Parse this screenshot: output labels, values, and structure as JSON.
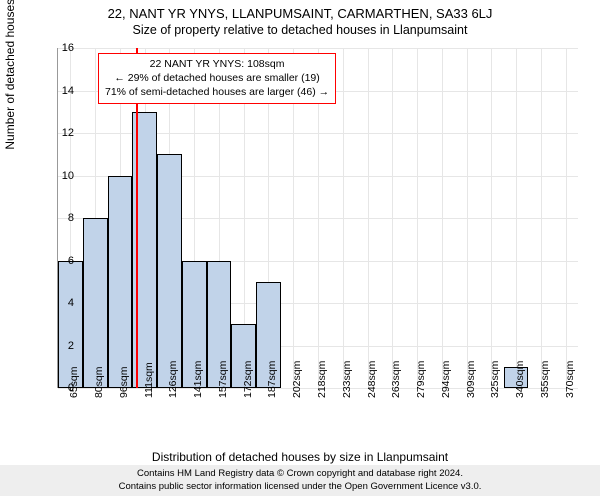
{
  "title_main": "22, NANT YR YNYS, LLANPUMSAINT, CARMARTHEN, SA33 6LJ",
  "title_sub": "Size of property relative to detached houses in Llanpumsaint",
  "y_axis_label": "Number of detached houses",
  "x_axis_label": "Distribution of detached houses by size in Llanpumsaint",
  "footer_line1": "Contains HM Land Registry data © Crown copyright and database right 2024.",
  "footer_line2": "Contains public sector information licensed under the Open Government Licence v3.0.",
  "chart": {
    "type": "histogram",
    "ylim": [
      0,
      16
    ],
    "ytick_step": 2,
    "bin_width": 15,
    "x_start": 60,
    "plot_bg": "#ffffff",
    "grid_color": "#e6e6e6",
    "bar_fill": "#c1d3e9",
    "bar_border": "#000000",
    "ref_line_color": "#ff0000",
    "ref_line_value": 108,
    "annotation_border": "#ff0000",
    "x_categories": [
      "65sqm",
      "80sqm",
      "96sqm",
      "111sqm",
      "126sqm",
      "141sqm",
      "157sqm",
      "172sqm",
      "187sqm",
      "202sqm",
      "218sqm",
      "233sqm",
      "248sqm",
      "263sqm",
      "279sqm",
      "294sqm",
      "309sqm",
      "325sqm",
      "340sqm",
      "355sqm",
      "370sqm"
    ],
    "values": [
      6,
      8,
      10,
      13,
      11,
      6,
      6,
      3,
      5,
      0,
      0,
      0,
      0,
      0,
      0,
      0,
      0,
      0,
      1,
      0,
      0
    ],
    "annotation": {
      "line1": "22 NANT YR YNYS: 108sqm",
      "line2": "← 29% of detached houses are smaller (19)",
      "line3": "71% of semi-detached houses are larger (46) →"
    }
  }
}
